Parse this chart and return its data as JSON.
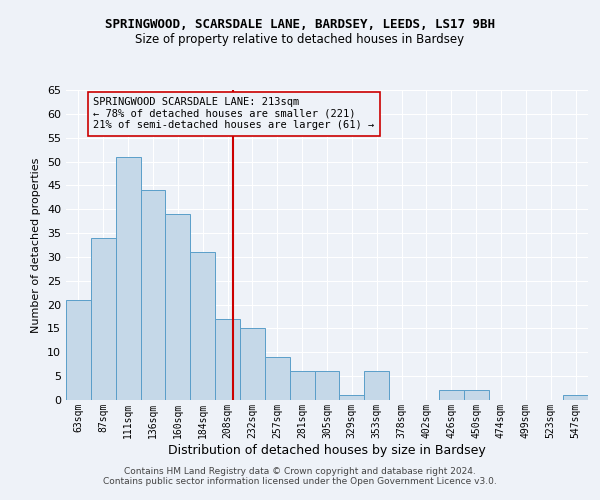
{
  "title": "SPRINGWOOD, SCARSDALE LANE, BARDSEY, LEEDS, LS17 9BH",
  "subtitle": "Size of property relative to detached houses in Bardsey",
  "xlabel": "Distribution of detached houses by size in Bardsey",
  "ylabel": "Number of detached properties",
  "categories": [
    "63sqm",
    "87sqm",
    "111sqm",
    "136sqm",
    "160sqm",
    "184sqm",
    "208sqm",
    "232sqm",
    "257sqm",
    "281sqm",
    "305sqm",
    "329sqm",
    "353sqm",
    "378sqm",
    "402sqm",
    "426sqm",
    "450sqm",
    "474sqm",
    "499sqm",
    "523sqm",
    "547sqm"
  ],
  "values": [
    21,
    34,
    51,
    44,
    39,
    31,
    17,
    15,
    9,
    6,
    6,
    1,
    6,
    0,
    0,
    2,
    2,
    0,
    0,
    0,
    1
  ],
  "bar_color": "#c5d8e8",
  "bar_edgecolor": "#5a9ec9",
  "bg_color": "#eef2f8",
  "grid_color": "#ffffff",
  "vline_color": "#cc0000",
  "annotation_text": "SPRINGWOOD SCARSDALE LANE: 213sqm\n← 78% of detached houses are smaller (221)\n21% of semi-detached houses are larger (61) →",
  "annotation_box_edgecolor": "#cc0000",
  "footer1": "Contains HM Land Registry data © Crown copyright and database right 2024.",
  "footer2": "Contains public sector information licensed under the Open Government Licence v3.0.",
  "ylim": [
    0,
    65
  ],
  "yticks": [
    0,
    5,
    10,
    15,
    20,
    25,
    30,
    35,
    40,
    45,
    50,
    55,
    60,
    65
  ],
  "title_fontsize": 9,
  "subtitle_fontsize": 8.5,
  "ylabel_fontsize": 8,
  "xlabel_fontsize": 9
}
